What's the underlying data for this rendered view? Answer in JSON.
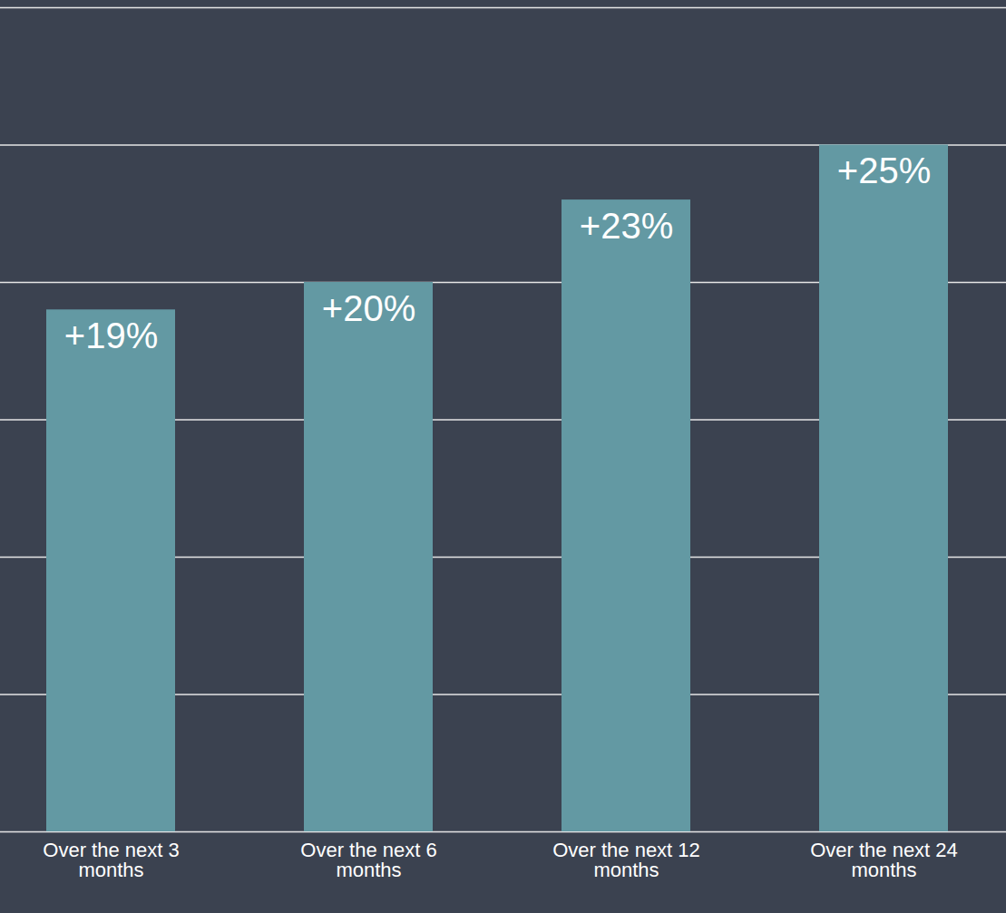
{
  "chart_data": {
    "type": "bar",
    "categories": [
      "Over the next 3 months",
      "Over the next 6 months",
      "Over the next 12 months",
      "Over the next 24 months"
    ],
    "values": [
      19,
      20,
      23,
      25
    ],
    "value_labels": [
      "+19%",
      "+20%",
      "+23%",
      "+25%"
    ],
    "color": "#6399a3",
    "ylim": [
      0,
      30
    ],
    "yticks": [
      0,
      5,
      10,
      15,
      20,
      25,
      30
    ],
    "grid": true,
    "data_labels": true,
    "tick_labels": "x"
  }
}
